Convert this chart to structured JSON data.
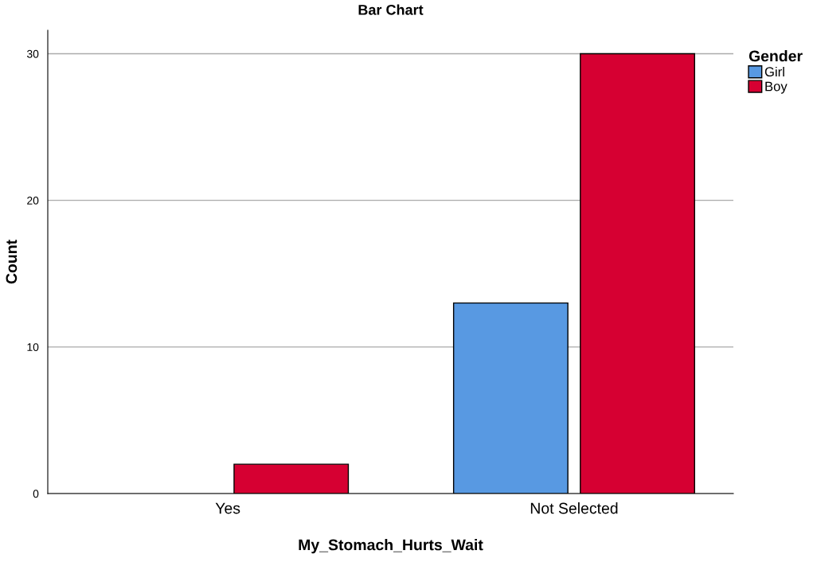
{
  "chart_data": {
    "type": "bar",
    "title": "Bar Chart",
    "xlabel": "My_Stomach_Hurts_Wait",
    "ylabel": "Count",
    "categories": [
      "Yes",
      "Not Selected"
    ],
    "series": [
      {
        "name": "Girl",
        "color": "#5899e2",
        "values": [
          null,
          13
        ]
      },
      {
        "name": "Boy",
        "color": "#d60032",
        "values": [
          2,
          30
        ]
      }
    ],
    "legend_title": "Gender",
    "legend": "top right",
    "ylim": [
      0,
      31.6
    ],
    "yticks": [
      0,
      10,
      20,
      30
    ],
    "grid": "y"
  }
}
